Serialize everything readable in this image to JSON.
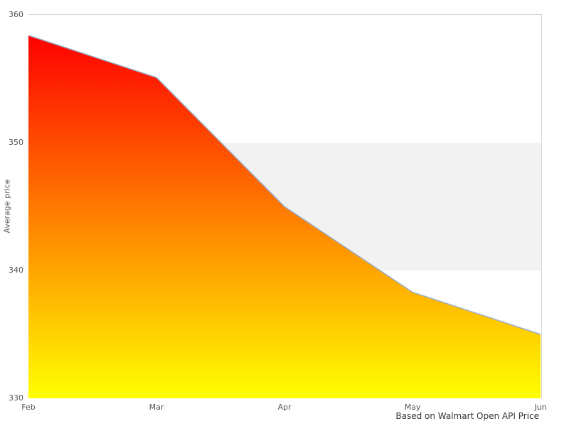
{
  "caption": "Based on Walmart Open API Price",
  "chart_data": {
    "type": "area",
    "title": "",
    "categories": [
      "Feb",
      "Mar",
      "Apr",
      "May",
      "Jun"
    ],
    "values": [
      358.4,
      355.1,
      345.0,
      338.3,
      335.0
    ],
    "xlabel": "",
    "ylabel": "Average price",
    "ylim": [
      330,
      360
    ],
    "yticks": [
      330,
      340,
      350,
      360
    ],
    "grid": "off",
    "legend": "none",
    "band": {
      "from": 340,
      "to": 350,
      "color": "#f2f2f2"
    },
    "area_gradient": {
      "top": "#ff0000",
      "bottom": "#ffff00"
    },
    "line_color": "#97aecb",
    "border_color": "#d4d4d4",
    "tick_label_color": "#555555",
    "caption_color": "#333333"
  }
}
